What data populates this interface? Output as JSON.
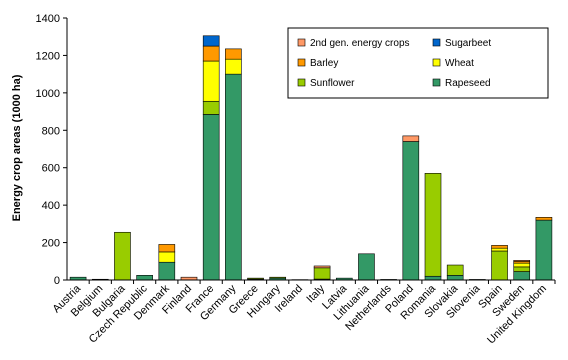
{
  "chart_data": {
    "type": "bar",
    "stacked": true,
    "title": "",
    "xlabel": "",
    "ylabel": "Energy crop areas (1000 ha)",
    "ylim": [
      0,
      1400
    ],
    "yticks": [
      0,
      200,
      400,
      600,
      800,
      1000,
      1200,
      1400
    ],
    "grid": false,
    "legend_position": "top-right",
    "categories": [
      "Austria",
      "Belgium",
      "Bulgaria",
      "Czech Republic",
      "Denmark",
      "Finland",
      "France",
      "Germany",
      "Greece",
      "Hungary",
      "Ireland",
      "Italy",
      "Latvia",
      "Lithuania",
      "Netherlands",
      "Poland",
      "Romania",
      "Slovakia",
      "Slovenia",
      "Spain",
      "Sweden",
      "United Kingdom"
    ],
    "series": [
      {
        "name": "Rapeseed",
        "color": "#339966",
        "values": [
          15,
          4,
          0,
          25,
          95,
          0,
          885,
          1100,
          5,
          10,
          0,
          5,
          10,
          140,
          3,
          740,
          20,
          25,
          3,
          0,
          45,
          320
        ]
      },
      {
        "name": "Sunflower",
        "color": "#99cc00",
        "values": [
          0,
          0,
          255,
          0,
          0,
          0,
          70,
          0,
          5,
          5,
          0,
          60,
          0,
          0,
          0,
          0,
          550,
          55,
          0,
          155,
          25,
          0
        ]
      },
      {
        "name": "Wheat",
        "color": "#ffff00",
        "values": [
          0,
          0,
          0,
          0,
          55,
          0,
          215,
          80,
          0,
          0,
          0,
          0,
          0,
          0,
          0,
          0,
          0,
          0,
          0,
          15,
          20,
          0
        ]
      },
      {
        "name": "Barley",
        "color": "#ff9900",
        "values": [
          0,
          0,
          0,
          0,
          40,
          0,
          80,
          55,
          0,
          0,
          0,
          0,
          0,
          0,
          0,
          0,
          0,
          0,
          0,
          15,
          10,
          15
        ]
      },
      {
        "name": "Sugarbeet",
        "color": "#0066cc",
        "values": [
          0,
          0,
          0,
          0,
          0,
          0,
          55,
          0,
          0,
          0,
          0,
          0,
          0,
          0,
          0,
          0,
          0,
          0,
          0,
          0,
          0,
          0
        ]
      },
      {
        "name": "2nd gen. energy crops",
        "color": "#ff9966",
        "values": [
          0,
          0,
          0,
          0,
          0,
          15,
          0,
          0,
          0,
          0,
          2,
          10,
          0,
          0,
          0,
          30,
          0,
          0,
          0,
          0,
          5,
          0
        ]
      }
    ],
    "legend_order": [
      "2nd gen. energy crops",
      "Sugarbeet",
      "Barley",
      "Wheat",
      "Sunflower",
      "Rapeseed"
    ]
  }
}
